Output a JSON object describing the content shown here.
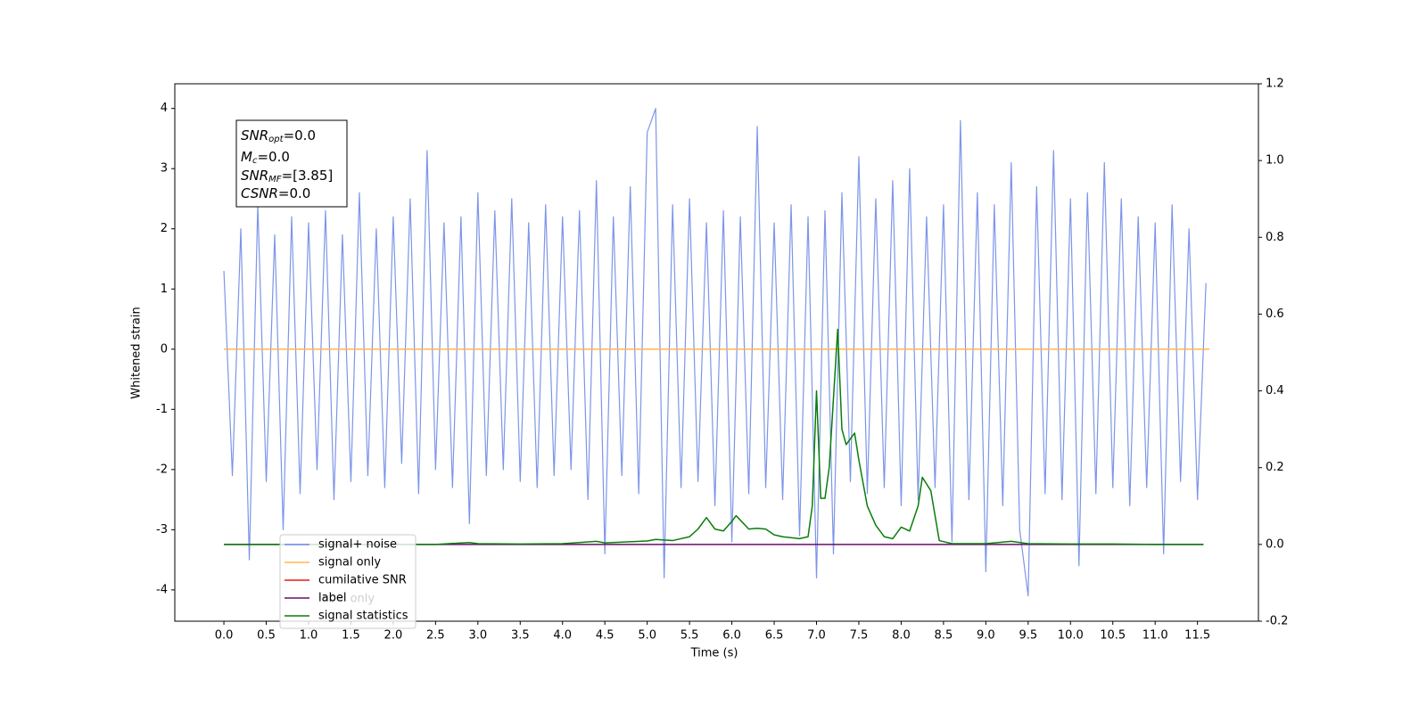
{
  "chart_data": {
    "type": "line",
    "ylabel": "Whitened strain",
    "xlabel": "Time (s)",
    "xlim": [
      -0.58,
      12.22
    ],
    "ylim": [
      -4.52,
      4.41
    ],
    "y2lim": [
      -0.2,
      1.2
    ],
    "xticks": [
      {
        "value": 0,
        "label": "0.0"
      },
      0.5,
      {
        "value": 1,
        "label": "1.0"
      },
      1.5,
      {
        "value": 2,
        "label": "2.0"
      },
      2.5,
      {
        "value": 3,
        "label": "3.0"
      },
      3.5,
      {
        "value": 4,
        "label": "4.0"
      },
      4.5,
      {
        "value": 5,
        "label": "5.0"
      },
      5.5,
      {
        "value": 6,
        "label": "6.0"
      },
      6.5,
      {
        "value": 7,
        "label": "7.0"
      },
      7.5,
      {
        "value": 8,
        "label": "8.0"
      },
      8.5,
      {
        "value": 9,
        "label": "9.0"
      },
      9.5,
      {
        "value": 10,
        "label": "10.0"
      },
      10.5,
      {
        "value": 11,
        "label": "11.0"
      },
      11.5
    ],
    "yticks": [
      -4,
      -3,
      -2,
      -1,
      0,
      1,
      2,
      3,
      4
    ],
    "y2ticks": [
      -0.2,
      {
        "value": 0,
        "label": "0.0"
      },
      0.2,
      0.4,
      0.6,
      0.8,
      {
        "value": 1,
        "label": "1.0"
      },
      1.2
    ],
    "annotation": [
      {
        "symbol": "SNR",
        "subscript": "opt",
        "text": "=0.0"
      },
      {
        "symbol": "M",
        "subscript": "c",
        "text": "=0.0"
      },
      {
        "symbol": "SNR",
        "subscript": "MF",
        "text": "=[3.85]"
      },
      {
        "symbol": "CSNR",
        "text": "=0.0"
      }
    ],
    "overlapped_label": "label only",
    "legend": "lower left",
    "series": [
      {
        "name": "signal+ noise",
        "color": "#6f8ae6",
        "x": [
          0,
          0.1,
          0.2,
          0.3,
          0.4,
          0.5,
          0.6,
          0.7,
          0.8,
          0.9,
          1,
          1.1,
          1.2,
          1.3,
          1.4,
          1.5,
          1.6,
          1.7,
          1.8,
          1.9,
          2,
          2.1,
          2.2,
          2.3,
          2.4,
          2.5,
          2.6,
          2.7,
          2.8,
          2.9,
          3,
          3.1,
          3.2,
          3.3,
          3.4,
          3.5,
          3.6,
          3.7,
          3.8,
          3.9,
          4,
          4.1,
          4.2,
          4.3,
          4.4,
          4.5,
          4.6,
          4.7,
          4.8,
          4.9,
          5,
          5.1,
          5.2,
          5.3,
          5.4,
          5.5,
          5.6,
          5.7,
          5.8,
          5.9,
          6,
          6.1,
          6.2,
          6.3,
          6.4,
          6.5,
          6.6,
          6.7,
          6.8,
          6.9,
          7,
          7.1,
          7.2,
          7.3,
          7.4,
          7.5,
          7.6,
          7.7,
          7.8,
          7.9,
          8,
          8.1,
          8.2,
          8.3,
          8.4,
          8.5,
          8.6,
          8.7,
          8.8,
          8.9,
          9,
          9.1,
          9.2,
          9.3,
          9.4,
          9.5,
          9.6,
          9.7,
          9.8,
          9.9,
          10,
          10.1,
          10.2,
          10.3,
          10.4,
          10.5,
          10.6,
          10.7,
          10.8,
          10.9,
          11,
          11.1,
          11.2,
          11.3,
          11.4,
          11.5,
          11.6
        ],
        "values": [
          1.3,
          -2.1,
          2.0,
          -3.5,
          2.4,
          -2.2,
          1.9,
          -3.0,
          2.2,
          -2.4,
          2.1,
          -2.0,
          2.3,
          -2.5,
          1.9,
          -2.2,
          2.6,
          -2.1,
          2.0,
          -2.3,
          2.2,
          -1.9,
          2.5,
          -2.4,
          3.3,
          -2.0,
          2.1,
          -2.3,
          2.2,
          -2.9,
          2.6,
          -2.1,
          2.3,
          -2.0,
          2.5,
          -2.2,
          2.1,
          -2.3,
          2.4,
          -2.1,
          2.2,
          -2.0,
          2.3,
          -2.5,
          2.8,
          -3.4,
          2.2,
          -2.1,
          2.7,
          -2.4,
          3.6,
          4.0,
          -3.8,
          2.4,
          -2.3,
          2.5,
          -2.2,
          2.1,
          -2.6,
          2.3,
          -3.2,
          2.2,
          -2.4,
          3.7,
          -2.3,
          2.1,
          -2.5,
          2.4,
          -3.1,
          2.2,
          -3.8,
          2.3,
          -3.4,
          2.6,
          -2.2,
          3.2,
          -2.4,
          2.5,
          -2.3,
          2.8,
          -2.6,
          3.0,
          -2.5,
          2.2,
          -2.3,
          2.4,
          -3.2,
          3.8,
          -2.5,
          2.6,
          -3.7,
          2.4,
          -2.6,
          3.1,
          -3.0,
          -4.1,
          2.7,
          -2.4,
          3.3,
          -2.5,
          2.5,
          -3.6,
          2.6,
          -2.4,
          3.1,
          -2.3,
          2.5,
          -2.6,
          2.2,
          -2.3,
          2.1,
          -3.4,
          2.4,
          -2.2,
          2.0,
          -2.5,
          1.1
        ]
      },
      {
        "name": "signal only",
        "color": "#ffb74d",
        "x": [
          0,
          11.64
        ],
        "values": [
          0,
          0
        ]
      },
      {
        "name": "cumilative SNR",
        "color": "#e41a1c"
      },
      {
        "name": "label",
        "color": "#6a0d6a",
        "axis": "y2",
        "x": [
          0,
          11.57
        ],
        "values": [
          0,
          0
        ]
      },
      {
        "name": "signal statistics",
        "color": "#0a7d0a",
        "axis": "y2",
        "x": [
          0,
          0.5,
          1,
          1.5,
          2,
          2.5,
          2.9,
          3.0,
          3.5,
          4,
          4.4,
          4.5,
          5,
          5.1,
          5.3,
          5.5,
          5.6,
          5.7,
          5.8,
          5.9,
          6.0,
          6.05,
          6.2,
          6.3,
          6.4,
          6.5,
          6.6,
          6.8,
          6.9,
          6.95,
          7.0,
          7.05,
          7.1,
          7.15,
          7.25,
          7.3,
          7.35,
          7.45,
          7.5,
          7.6,
          7.7,
          7.8,
          7.9,
          8.0,
          8.1,
          8.2,
          8.25,
          8.35,
          8.45,
          8.6,
          9.0,
          9.3,
          9.5,
          10,
          10.5,
          11,
          11.57
        ],
        "values": [
          0,
          0,
          0,
          0,
          0,
          0,
          0.005,
          0.002,
          0.001,
          0.002,
          0.008,
          0.004,
          0.009,
          0.013,
          0.01,
          0.02,
          0.04,
          0.07,
          0.04,
          0.035,
          0.06,
          0.075,
          0.04,
          0.042,
          0.04,
          0.025,
          0.02,
          0.015,
          0.02,
          0.1,
          0.4,
          0.12,
          0.12,
          0.2,
          0.56,
          0.3,
          0.26,
          0.29,
          0.22,
          0.1,
          0.05,
          0.02,
          0.015,
          0.045,
          0.035,
          0.1,
          0.175,
          0.14,
          0.01,
          0.002,
          0.002,
          0.008,
          0.002,
          0.001,
          0.001,
          0,
          0
        ]
      }
    ]
  }
}
